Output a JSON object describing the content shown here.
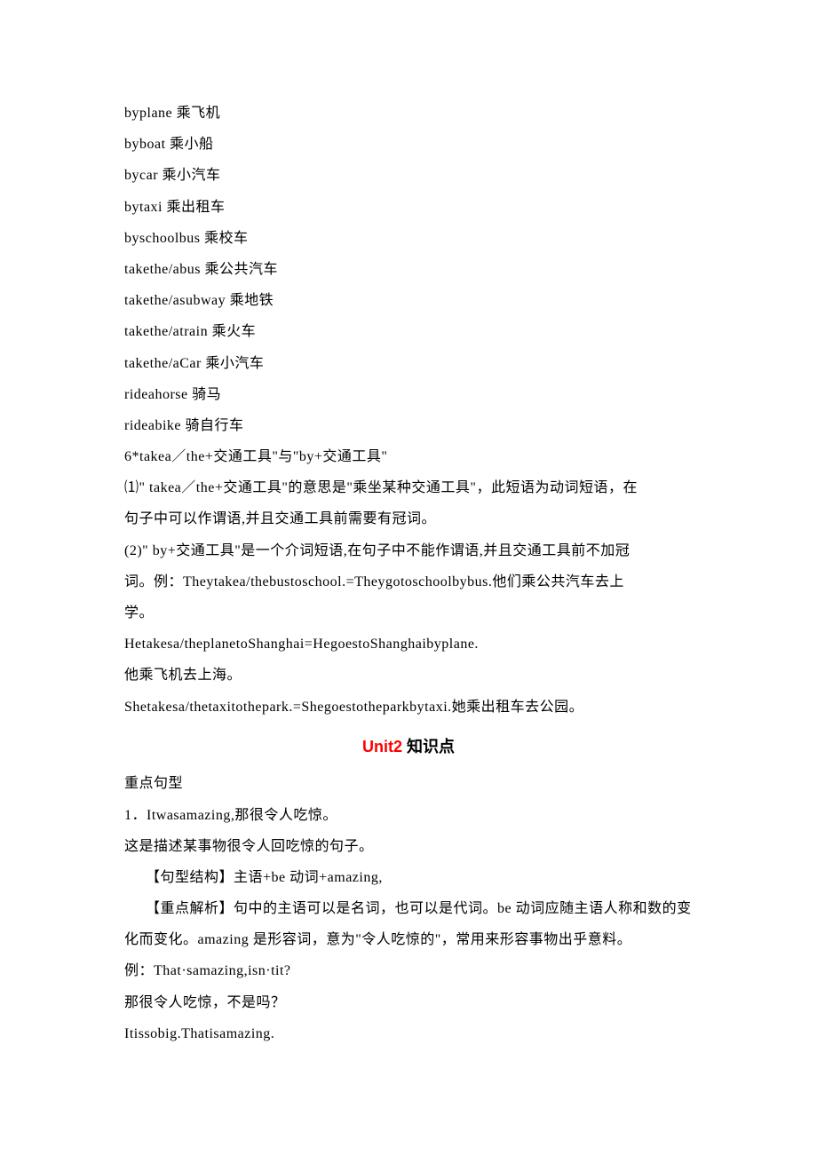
{
  "phrases": [
    "byplane 乘飞机",
    "byboat 乘小船",
    "bycar 乘小汽车",
    "bytaxi 乘出租车",
    "byschoolbus 乘校车",
    "takethe/abus 乘公共汽车",
    "takethe/asubway 乘地铁",
    "takethe/atrain 乘火车",
    "takethe/aCar 乘小汽车",
    "rideahorse 骑马",
    "rideabike 骑自行车"
  ],
  "grammar": {
    "title": "6*takea／the+交通工具\"与\"by+交通工具\"",
    "p1a": "⑴\" takea／the+交通工具\"的意思是\"乘坐某种交通工具\"，此短语为动词短语，在",
    "p1b": "句子中可以作谓语,并且交通工具前需要有冠词。",
    "p2a": "(2)\" by+交通工具\"是一个介词短语,在句子中不能作谓语,并且交通工具前不加冠",
    "p2b": "词。例：Theytakea/thebustoschool.=Theygotoschoolbybus.他们乘公共汽车去上",
    "p2c": "学。",
    "ex1": "Hetakesa/theplanetoShanghai=HegoestoShanghaibyplane.",
    "ex1cn": "他乘飞机去上海。",
    "ex2": "Shetakesa/thetaxitothepark.=Shegoestotheparkbytaxi.她乘出租车去公园。"
  },
  "unit2": {
    "title_red": "Unit2 ",
    "title_black": "知识点",
    "heading": "重点句型",
    "s1": "1．Itwasamazing,那很令人吃惊。",
    "s1desc": "这是描述某事物很令人回吃惊的句子。",
    "s1struct": "【句型结构】主语+be 动词+amazing,",
    "s1analysis_a": "【重点解析】句中的主语可以是名词，也可以是代词。be 动词应随主语人称和数的变",
    "s1analysis_b": "化而变化。amazing 是形容词，意为\"令人吃惊的\"，常用来形容事物出乎意料。",
    "s1ex": "例：That·samazing,isn·tit?",
    "s1excn": "那很令人吃惊，不是吗？",
    "s1ex2": "Itissobig.Thatisamazing."
  },
  "colors": {
    "text": "#000000",
    "red": "#ff0000",
    "background": "#ffffff"
  },
  "typography": {
    "body_fontsize": 16,
    "title_fontsize": 18,
    "line_height": 2.2,
    "body_font": "SimSun",
    "title_font": "SimHei"
  }
}
